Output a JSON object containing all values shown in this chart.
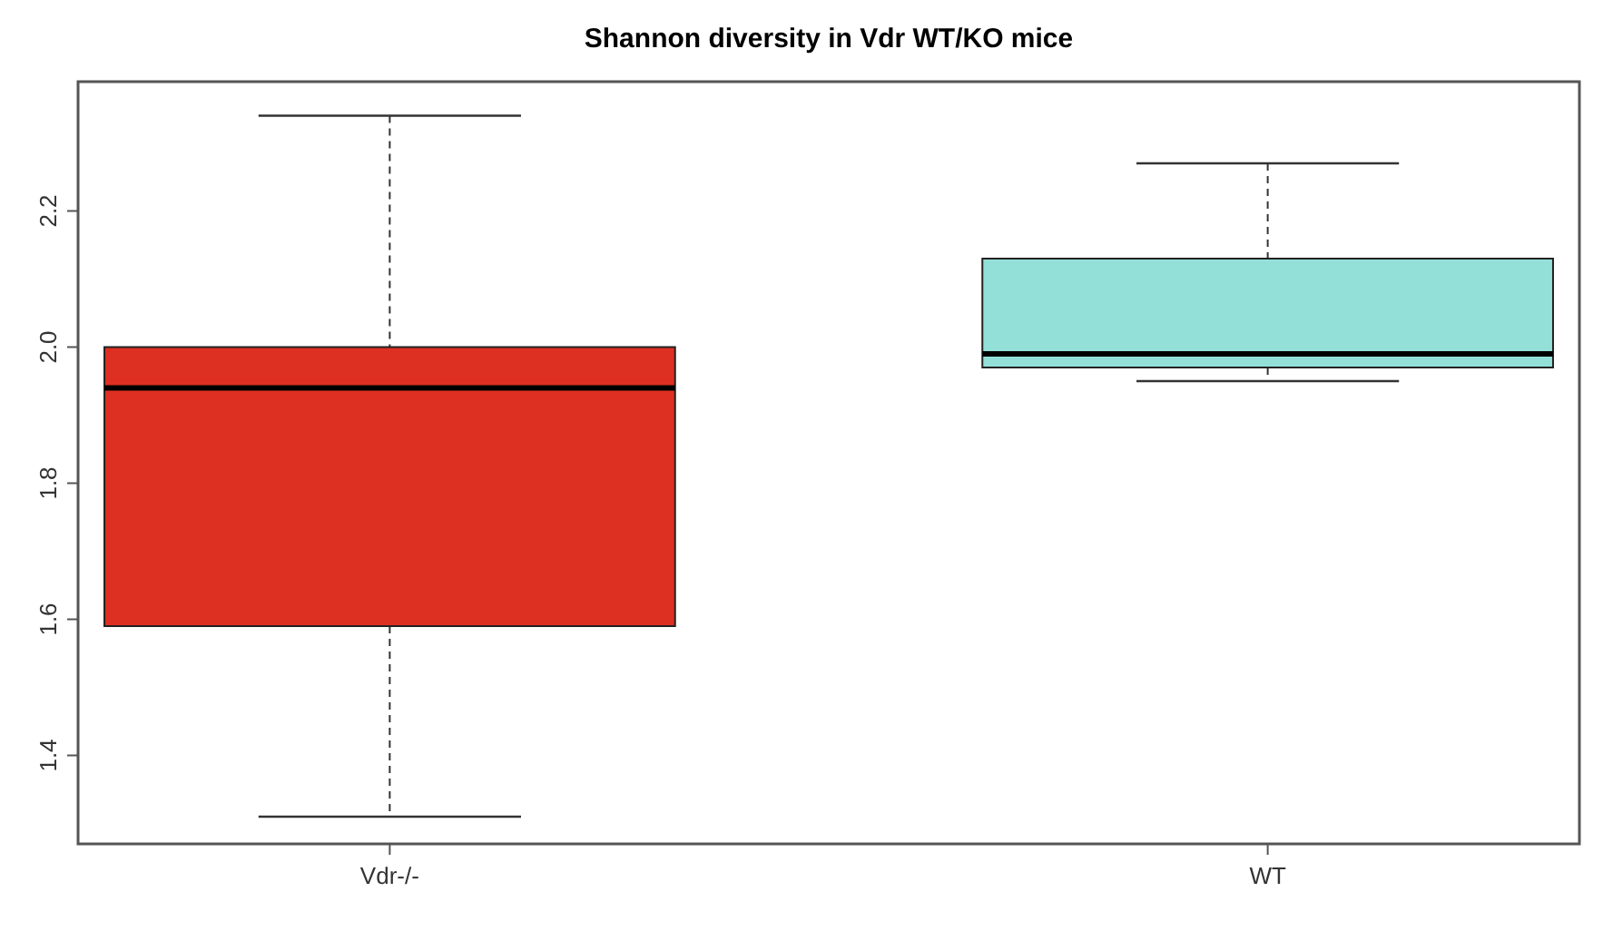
{
  "chart_data": {
    "type": "box",
    "title": "Shannon diversity in Vdr WT/KO mice",
    "categories": [
      "Vdr-/-",
      "WT"
    ],
    "series": [
      {
        "colors": [
          "#de3022",
          "#93e0d9"
        ],
        "boxes": [
          {
            "low": 1.31,
            "q1": 1.59,
            "median": 1.94,
            "q3": 2.0,
            "high": 2.34
          },
          {
            "low": 1.95,
            "q1": 1.97,
            "median": 1.99,
            "q3": 2.13,
            "high": 2.27
          }
        ]
      }
    ],
    "ylim": [
      1.27,
      2.39
    ],
    "yticks": [
      1.4,
      1.6,
      1.8,
      {
        "value": 2,
        "label": "2.0"
      },
      2.2
    ],
    "grid": false
  }
}
